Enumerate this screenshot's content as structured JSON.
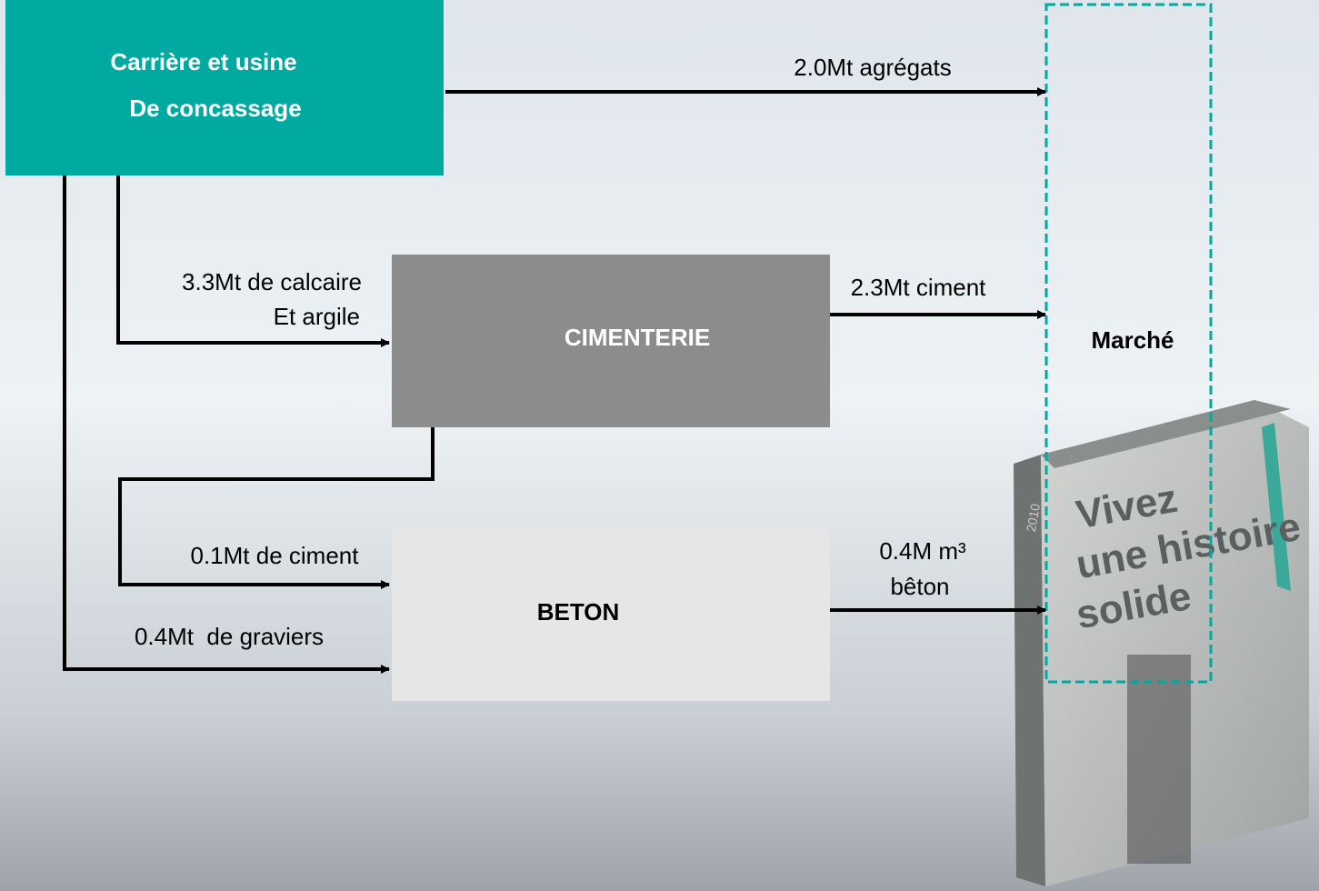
{
  "nodes": [
    {
      "label_lines": [
        "Carrière et usine",
        "De concassage"
      ]
    },
    {
      "label": "CIMENTERIE"
    },
    {
      "label": "BETON"
    },
    {
      "label": "Marché"
    }
  ],
  "flows": [
    {
      "label_lines": [
        "2.0Mt agrégats"
      ]
    },
    {
      "label_lines": [
        "3.3Mt de calcaire",
        "Et argile"
      ]
    },
    {
      "label_lines": [
        "2.3Mt ciment"
      ]
    },
    {
      "label_lines": [
        "0.1Mt de ciment"
      ]
    },
    {
      "label_lines": [
        "0.4Mt  de graviers"
      ]
    },
    {
      "label_lines": [
        "0.4M m³",
        "bêton"
      ]
    }
  ],
  "book": {
    "lines": [
      "Vivez",
      "une histoire",
      "solide"
    ],
    "year": "2010"
  }
}
